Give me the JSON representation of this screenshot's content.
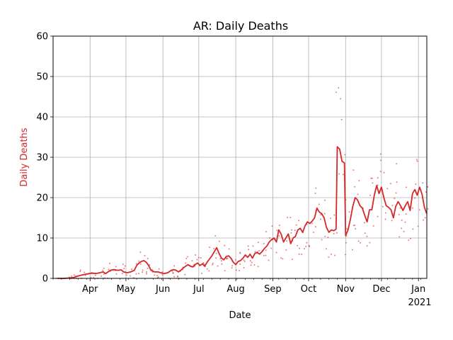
{
  "chart_data": {
    "type": "line",
    "title": "AR: Daily Deaths",
    "xlabel": "Date",
    "ylabel": "Daily Deaths",
    "ylim": [
      0,
      60
    ],
    "xlim": [
      "2020-03-01",
      "2021-01-08"
    ],
    "grid": true,
    "colors": {
      "line": "#d62728",
      "points": "#d62728",
      "ylabel": "#d62728"
    },
    "x_tick_labels": [
      {
        "date": "2020-04-01",
        "label": "Apr"
      },
      {
        "date": "2020-05-01",
        "label": "May"
      },
      {
        "date": "2020-06-01",
        "label": "Jun"
      },
      {
        "date": "2020-07-01",
        "label": "Jul"
      },
      {
        "date": "2020-08-01",
        "label": "Aug"
      },
      {
        "date": "2020-09-01",
        "label": "Sep"
      },
      {
        "date": "2020-10-01",
        "label": "Oct"
      },
      {
        "date": "2020-11-01",
        "label": "Nov"
      },
      {
        "date": "2020-12-01",
        "label": "Dec"
      },
      {
        "date": "2021-01-01",
        "label": "Jan"
      }
    ],
    "x_offset_label": "2021",
    "y_ticks": [
      0,
      10,
      20,
      30,
      40,
      50,
      60
    ],
    "series": [
      {
        "kind": "line",
        "points": [
          [
            "2020-03-05",
            0
          ],
          [
            "2020-03-10",
            0
          ],
          [
            "2020-03-15",
            0.1
          ],
          [
            "2020-03-18",
            0.2
          ],
          [
            "2020-03-20",
            0.4
          ],
          [
            "2020-03-22",
            0.6
          ],
          [
            "2020-03-25",
            0.8
          ],
          [
            "2020-03-28",
            1.0
          ],
          [
            "2020-03-31",
            1.2
          ],
          [
            "2020-04-03",
            1.3
          ],
          [
            "2020-04-06",
            1.2
          ],
          [
            "2020-04-09",
            1.4
          ],
          [
            "2020-04-12",
            1.6
          ],
          [
            "2020-04-14",
            1.2
          ],
          [
            "2020-04-16",
            1.6
          ],
          [
            "2020-04-18",
            2.0
          ],
          [
            "2020-04-21",
            2.2
          ],
          [
            "2020-04-24",
            2.0
          ],
          [
            "2020-04-27",
            2.1
          ],
          [
            "2020-04-29",
            1.6
          ],
          [
            "2020-05-02",
            1.4
          ],
          [
            "2020-05-05",
            1.6
          ],
          [
            "2020-05-08",
            2.0
          ],
          [
            "2020-05-10",
            3.2
          ],
          [
            "2020-05-12",
            3.8
          ],
          [
            "2020-05-14",
            4.2
          ],
          [
            "2020-05-16",
            4.4
          ],
          [
            "2020-05-18",
            4.0
          ],
          [
            "2020-05-20",
            3.2
          ],
          [
            "2020-05-22",
            2.0
          ],
          [
            "2020-05-25",
            1.6
          ],
          [
            "2020-05-28",
            1.6
          ],
          [
            "2020-05-30",
            1.4
          ],
          [
            "2020-06-02",
            1.2
          ],
          [
            "2020-06-05",
            1.4
          ],
          [
            "2020-06-08",
            2.0
          ],
          [
            "2020-06-10",
            2.2
          ],
          [
            "2020-06-12",
            2.0
          ],
          [
            "2020-06-14",
            1.6
          ],
          [
            "2020-06-16",
            2.0
          ],
          [
            "2020-06-18",
            2.6
          ],
          [
            "2020-06-20",
            3.0
          ],
          [
            "2020-06-22",
            3.4
          ],
          [
            "2020-06-24",
            3.0
          ],
          [
            "2020-06-26",
            2.8
          ],
          [
            "2020-06-28",
            3.4
          ],
          [
            "2020-06-30",
            3.8
          ],
          [
            "2020-07-02",
            3.2
          ],
          [
            "2020-07-04",
            3.6
          ],
          [
            "2020-07-06",
            3.0
          ],
          [
            "2020-07-08",
            4.0
          ],
          [
            "2020-07-10",
            4.8
          ],
          [
            "2020-07-12",
            5.6
          ],
          [
            "2020-07-14",
            6.6
          ],
          [
            "2020-07-16",
            7.6
          ],
          [
            "2020-07-18",
            6.2
          ],
          [
            "2020-07-20",
            5.0
          ],
          [
            "2020-07-22",
            4.6
          ],
          [
            "2020-07-24",
            5.4
          ],
          [
            "2020-07-26",
            5.6
          ],
          [
            "2020-07-28",
            5.0
          ],
          [
            "2020-07-30",
            4.0
          ],
          [
            "2020-08-01",
            3.4
          ],
          [
            "2020-08-03",
            4.2
          ],
          [
            "2020-08-05",
            4.4
          ],
          [
            "2020-08-07",
            5.0
          ],
          [
            "2020-08-09",
            5.8
          ],
          [
            "2020-08-11",
            5.2
          ],
          [
            "2020-08-13",
            6.0
          ],
          [
            "2020-08-15",
            5.0
          ],
          [
            "2020-08-17",
            6.2
          ],
          [
            "2020-08-19",
            6.4
          ],
          [
            "2020-08-21",
            6.0
          ],
          [
            "2020-08-23",
            6.6
          ],
          [
            "2020-08-25",
            7.4
          ],
          [
            "2020-08-27",
            8.0
          ],
          [
            "2020-08-29",
            9.0
          ],
          [
            "2020-08-31",
            9.6
          ],
          [
            "2020-09-02",
            10.0
          ],
          [
            "2020-09-04",
            9.0
          ],
          [
            "2020-09-06",
            12.0
          ],
          [
            "2020-09-08",
            11.0
          ],
          [
            "2020-09-10",
            9.0
          ],
          [
            "2020-09-12",
            10.0
          ],
          [
            "2020-09-14",
            11.0
          ],
          [
            "2020-09-16",
            8.6
          ],
          [
            "2020-09-18",
            10.0
          ],
          [
            "2020-09-20",
            10.4
          ],
          [
            "2020-09-22",
            12.0
          ],
          [
            "2020-09-24",
            12.4
          ],
          [
            "2020-09-26",
            11.4
          ],
          [
            "2020-09-28",
            13.0
          ],
          [
            "2020-09-30",
            14.0
          ],
          [
            "2020-10-02",
            13.6
          ],
          [
            "2020-10-04",
            14.2
          ],
          [
            "2020-10-06",
            15.0
          ],
          [
            "2020-10-08",
            17.4
          ],
          [
            "2020-10-10",
            16.4
          ],
          [
            "2020-10-12",
            16.0
          ],
          [
            "2020-10-14",
            15.0
          ],
          [
            "2020-10-16",
            12.6
          ],
          [
            "2020-10-18",
            11.4
          ],
          [
            "2020-10-20",
            12.0
          ],
          [
            "2020-10-22",
            11.8
          ],
          [
            "2020-10-24",
            12.2
          ],
          [
            "2020-10-25",
            32.6
          ],
          [
            "2020-10-27",
            32.0
          ],
          [
            "2020-10-29",
            29.0
          ],
          [
            "2020-10-31",
            28.6
          ],
          [
            "2020-11-01",
            10.6
          ],
          [
            "2020-11-03",
            12.0
          ],
          [
            "2020-11-05",
            14.6
          ],
          [
            "2020-11-07",
            17.8
          ],
          [
            "2020-11-09",
            20.0
          ],
          [
            "2020-11-11",
            19.4
          ],
          [
            "2020-11-13",
            18.0
          ],
          [
            "2020-11-15",
            17.4
          ],
          [
            "2020-11-17",
            15.6
          ],
          [
            "2020-11-19",
            14.0
          ],
          [
            "2020-11-21",
            17.0
          ],
          [
            "2020-11-23",
            17.0
          ],
          [
            "2020-11-25",
            20.6
          ],
          [
            "2020-11-27",
            23.0
          ],
          [
            "2020-11-29",
            21.0
          ],
          [
            "2020-12-01",
            22.6
          ],
          [
            "2020-12-03",
            20.0
          ],
          [
            "2020-12-05",
            18.0
          ],
          [
            "2020-12-07",
            17.6
          ],
          [
            "2020-12-09",
            17.0
          ],
          [
            "2020-12-11",
            15.0
          ],
          [
            "2020-12-13",
            17.8
          ],
          [
            "2020-12-15",
            19.0
          ],
          [
            "2020-12-17",
            18.0
          ],
          [
            "2020-12-19",
            16.8
          ],
          [
            "2020-12-21",
            18.0
          ],
          [
            "2020-12-23",
            19.0
          ],
          [
            "2020-12-25",
            16.8
          ],
          [
            "2020-12-27",
            21.0
          ],
          [
            "2020-12-29",
            22.0
          ],
          [
            "2020-12-31",
            20.6
          ],
          [
            "2021-01-02",
            22.6
          ],
          [
            "2021-01-04",
            20.8
          ],
          [
            "2021-01-06",
            17.6
          ],
          [
            "2021-01-08",
            16.0
          ]
        ]
      }
    ]
  }
}
